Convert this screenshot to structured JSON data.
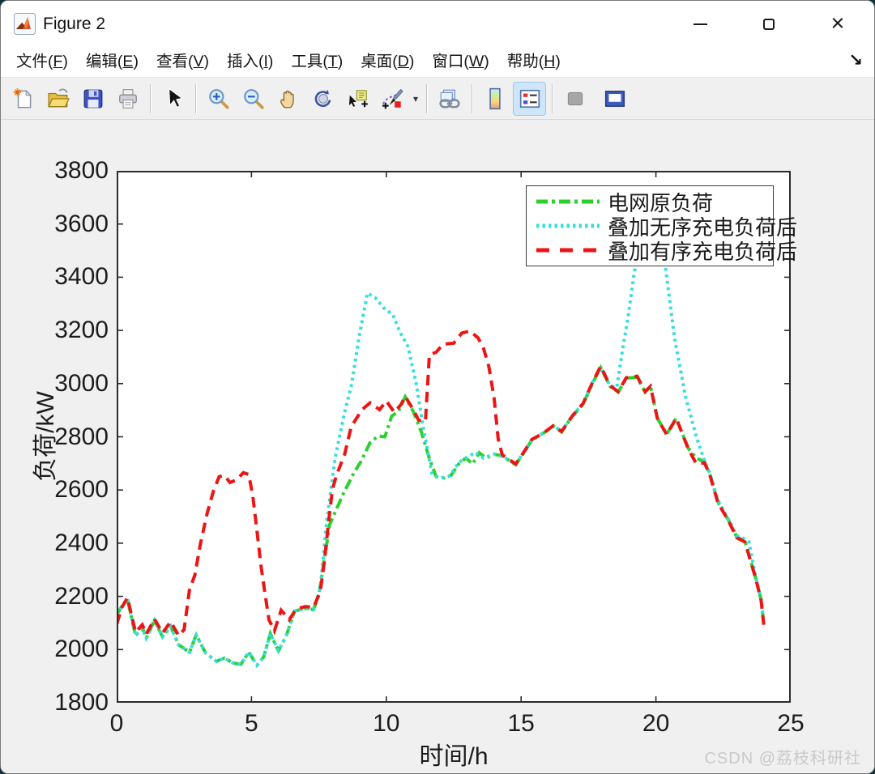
{
  "window": {
    "title": "Figure 2"
  },
  "menu": {
    "items": [
      {
        "pre": "文件(",
        "key": "F",
        "post": ")"
      },
      {
        "pre": "编辑(",
        "key": "E",
        "post": ")"
      },
      {
        "pre": "查看(",
        "key": "V",
        "post": ")"
      },
      {
        "pre": "插入(",
        "key": "I",
        "post": ")"
      },
      {
        "pre": "工具(",
        "key": "T",
        "post": ")"
      },
      {
        "pre": "桌面(",
        "key": "D",
        "post": ")"
      },
      {
        "pre": "窗口(",
        "key": "W",
        "post": ")"
      },
      {
        "pre": "帮助(",
        "key": "H",
        "post": ")"
      }
    ],
    "dock_arrow_glyph": "↘"
  },
  "toolbar": {
    "buttons": [
      "new-figure",
      "open-file",
      "save-figure",
      "print-figure",
      "edit-plot",
      "zoom-in",
      "zoom-out",
      "pan",
      "rotate-3d",
      "data-cursor",
      "brush-data",
      "link-plot",
      "insert-colorbar",
      "insert-legend",
      "hide-plot-tools",
      "show-plot-tools"
    ],
    "active_button": "insert-legend"
  },
  "chart_data": {
    "type": "line",
    "xlabel": "时间/h",
    "ylabel": "负荷/kW",
    "xlim": [
      0,
      25
    ],
    "ylim": [
      1800,
      3800
    ],
    "x_ticks": [
      0,
      5,
      10,
      15,
      20,
      25
    ],
    "y_ticks": [
      1800,
      2000,
      2200,
      2400,
      2600,
      2800,
      3000,
      3200,
      3400,
      3600,
      3800
    ],
    "grid": false,
    "legend_position": "upper-right-inside",
    "series": [
      {
        "name": "电网原负荷",
        "color": "#2bd12b",
        "style": "dash-dot",
        "points": [
          [
            0,
            2130
          ],
          [
            0.2,
            2165
          ],
          [
            0.4,
            2190
          ],
          [
            0.7,
            2052
          ],
          [
            0.95,
            2083
          ],
          [
            1.1,
            2043
          ],
          [
            1.4,
            2110
          ],
          [
            1.7,
            2048
          ],
          [
            2.0,
            2088
          ],
          [
            2.3,
            2018
          ],
          [
            2.7,
            1990
          ],
          [
            2.95,
            2055
          ],
          [
            3.3,
            1987
          ],
          [
            3.7,
            1956
          ],
          [
            4.0,
            1968
          ],
          [
            4.3,
            1950
          ],
          [
            4.6,
            1944
          ],
          [
            4.9,
            1990
          ],
          [
            5.2,
            1941
          ],
          [
            5.45,
            1972
          ],
          [
            5.7,
            2060
          ],
          [
            6.0,
            1995
          ],
          [
            6.3,
            2055
          ],
          [
            6.6,
            2145
          ],
          [
            7.0,
            2155
          ],
          [
            7.3,
            2150
          ],
          [
            7.5,
            2205
          ],
          [
            7.9,
            2470
          ],
          [
            8.4,
            2585
          ],
          [
            8.8,
            2665
          ],
          [
            9.05,
            2705
          ],
          [
            9.4,
            2778
          ],
          [
            9.7,
            2803
          ],
          [
            9.95,
            2800
          ],
          [
            10.2,
            2878
          ],
          [
            10.45,
            2895
          ],
          [
            10.7,
            2950
          ],
          [
            11.0,
            2895
          ],
          [
            11.3,
            2818
          ],
          [
            11.6,
            2718
          ],
          [
            11.85,
            2650
          ],
          [
            12.15,
            2645
          ],
          [
            12.4,
            2655
          ],
          [
            12.7,
            2700
          ],
          [
            12.95,
            2720
          ],
          [
            13.2,
            2698
          ],
          [
            13.45,
            2740
          ],
          [
            13.7,
            2720
          ],
          [
            14.0,
            2735
          ],
          [
            14.3,
            2728
          ],
          [
            14.8,
            2695
          ],
          [
            15.1,
            2740
          ],
          [
            15.4,
            2788
          ],
          [
            15.8,
            2812
          ],
          [
            16.2,
            2840
          ],
          [
            16.5,
            2818
          ],
          [
            16.9,
            2878
          ],
          [
            17.3,
            2922
          ],
          [
            17.65,
            3002
          ],
          [
            17.95,
            3060
          ],
          [
            18.3,
            2990
          ],
          [
            18.6,
            2968
          ],
          [
            18.9,
            3020
          ],
          [
            19.3,
            3025
          ],
          [
            19.6,
            2968
          ],
          [
            19.8,
            2990
          ],
          [
            20.05,
            2870
          ],
          [
            20.4,
            2810
          ],
          [
            20.75,
            2870
          ],
          [
            21.2,
            2757
          ],
          [
            21.5,
            2720
          ],
          [
            21.8,
            2706
          ],
          [
            22.0,
            2658
          ],
          [
            22.3,
            2555
          ],
          [
            22.7,
            2484
          ],
          [
            23.0,
            2423
          ],
          [
            23.3,
            2408
          ],
          [
            23.7,
            2270
          ],
          [
            23.9,
            2188
          ],
          [
            24.0,
            2096
          ]
        ]
      },
      {
        "name": "叠加无序充电负荷后",
        "color": "#35dede",
        "style": "dotted",
        "points": [
          [
            0,
            2130
          ],
          [
            0.2,
            2165
          ],
          [
            0.4,
            2190
          ],
          [
            0.7,
            2052
          ],
          [
            0.95,
            2083
          ],
          [
            1.1,
            2043
          ],
          [
            1.4,
            2110
          ],
          [
            1.7,
            2048
          ],
          [
            2.0,
            2088
          ],
          [
            2.3,
            2018
          ],
          [
            2.7,
            1990
          ],
          [
            2.95,
            2055
          ],
          [
            3.3,
            1987
          ],
          [
            3.7,
            1956
          ],
          [
            4.0,
            1968
          ],
          [
            4.3,
            1950
          ],
          [
            4.6,
            1944
          ],
          [
            4.9,
            1990
          ],
          [
            5.2,
            1941
          ],
          [
            5.45,
            1972
          ],
          [
            5.7,
            2060
          ],
          [
            6.0,
            1995
          ],
          [
            6.3,
            2055
          ],
          [
            6.6,
            2145
          ],
          [
            7.0,
            2155
          ],
          [
            7.3,
            2150
          ],
          [
            7.55,
            2230
          ],
          [
            7.8,
            2490
          ],
          [
            8.1,
            2720
          ],
          [
            8.45,
            2890
          ],
          [
            8.7,
            2990
          ],
          [
            9.0,
            3180
          ],
          [
            9.3,
            3340
          ],
          [
            9.6,
            3322
          ],
          [
            9.9,
            3285
          ],
          [
            10.25,
            3258
          ],
          [
            10.5,
            3195
          ],
          [
            10.8,
            3140
          ],
          [
            11.1,
            3005
          ],
          [
            11.4,
            2818
          ],
          [
            11.7,
            2658
          ],
          [
            12.0,
            2645
          ],
          [
            12.35,
            2652
          ],
          [
            12.7,
            2705
          ],
          [
            13.0,
            2722
          ],
          [
            13.3,
            2742
          ],
          [
            13.6,
            2720
          ],
          [
            14.0,
            2735
          ],
          [
            14.3,
            2728
          ],
          [
            14.8,
            2696
          ],
          [
            15.4,
            2790
          ],
          [
            15.8,
            2812
          ],
          [
            16.2,
            2842
          ],
          [
            16.5,
            2820
          ],
          [
            16.9,
            2880
          ],
          [
            17.3,
            2925
          ],
          [
            17.65,
            3005
          ],
          [
            17.95,
            3060
          ],
          [
            18.3,
            2992
          ],
          [
            18.55,
            2985
          ],
          [
            18.75,
            3120
          ],
          [
            18.95,
            3240
          ],
          [
            19.2,
            3420
          ],
          [
            19.5,
            3570
          ],
          [
            19.8,
            3650
          ],
          [
            20.05,
            3615
          ],
          [
            20.35,
            3440
          ],
          [
            20.7,
            3165
          ],
          [
            21.1,
            2950
          ],
          [
            21.5,
            2800
          ],
          [
            21.8,
            2710
          ],
          [
            22.0,
            2662
          ],
          [
            22.3,
            2560
          ],
          [
            22.7,
            2488
          ],
          [
            23.0,
            2428
          ],
          [
            23.25,
            2418
          ],
          [
            23.45,
            2405
          ],
          [
            23.7,
            2272
          ],
          [
            23.9,
            2190
          ],
          [
            24.0,
            2100
          ]
        ]
      },
      {
        "name": "叠加有序充电负荷后",
        "color": "#ee1414",
        "style": "dashed",
        "points": [
          [
            0,
            2095
          ],
          [
            0.2,
            2160
          ],
          [
            0.4,
            2195
          ],
          [
            0.7,
            2065
          ],
          [
            0.95,
            2093
          ],
          [
            1.1,
            2058
          ],
          [
            1.4,
            2115
          ],
          [
            1.7,
            2062
          ],
          [
            2.0,
            2105
          ],
          [
            2.3,
            2052
          ],
          [
            2.5,
            2075
          ],
          [
            2.7,
            2225
          ],
          [
            2.9,
            2280
          ],
          [
            3.1,
            2395
          ],
          [
            3.35,
            2510
          ],
          [
            3.6,
            2600
          ],
          [
            3.8,
            2650
          ],
          [
            4.0,
            2655
          ],
          [
            4.2,
            2628
          ],
          [
            4.45,
            2638
          ],
          [
            4.7,
            2665
          ],
          [
            4.9,
            2658
          ],
          [
            5.05,
            2575
          ],
          [
            5.2,
            2448
          ],
          [
            5.35,
            2318
          ],
          [
            5.5,
            2212
          ],
          [
            5.65,
            2112
          ],
          [
            5.85,
            2070
          ],
          [
            6.1,
            2148
          ],
          [
            6.4,
            2112
          ],
          [
            6.65,
            2152
          ],
          [
            7.0,
            2162
          ],
          [
            7.3,
            2158
          ],
          [
            7.55,
            2218
          ],
          [
            7.7,
            2330
          ],
          [
            7.85,
            2470
          ],
          [
            8.0,
            2600
          ],
          [
            8.15,
            2655
          ],
          [
            8.45,
            2732
          ],
          [
            8.7,
            2838
          ],
          [
            9.1,
            2902
          ],
          [
            9.4,
            2928
          ],
          [
            9.75,
            2902
          ],
          [
            10.0,
            2935
          ],
          [
            10.3,
            2892
          ],
          [
            10.55,
            2922
          ],
          [
            10.7,
            2952
          ],
          [
            11.0,
            2902
          ],
          [
            11.2,
            2862
          ],
          [
            11.45,
            2858
          ],
          [
            11.6,
            3108
          ],
          [
            11.85,
            3118
          ],
          [
            12.1,
            3148
          ],
          [
            12.5,
            3152
          ],
          [
            12.8,
            3190
          ],
          [
            13.1,
            3198
          ],
          [
            13.4,
            3172
          ],
          [
            13.6,
            3135
          ],
          [
            13.8,
            3065
          ],
          [
            14.0,
            2945
          ],
          [
            14.15,
            2792
          ],
          [
            14.3,
            2732
          ],
          [
            14.8,
            2698
          ],
          [
            15.1,
            2742
          ],
          [
            15.4,
            2790
          ],
          [
            15.8,
            2812
          ],
          [
            16.2,
            2842
          ],
          [
            16.5,
            2820
          ],
          [
            16.9,
            2878
          ],
          [
            17.3,
            2925
          ],
          [
            17.65,
            3005
          ],
          [
            17.95,
            3065
          ],
          [
            18.3,
            2992
          ],
          [
            18.6,
            2970
          ],
          [
            18.9,
            3022
          ],
          [
            19.3,
            3028
          ],
          [
            19.6,
            2970
          ],
          [
            19.8,
            2990
          ],
          [
            20.05,
            2870
          ],
          [
            20.4,
            2808
          ],
          [
            20.75,
            2870
          ],
          [
            21.2,
            2755
          ],
          [
            21.5,
            2698
          ],
          [
            21.8,
            2702
          ],
          [
            22.0,
            2656
          ],
          [
            22.3,
            2552
          ],
          [
            22.7,
            2482
          ],
          [
            23.0,
            2420
          ],
          [
            23.3,
            2405
          ],
          [
            23.7,
            2268
          ],
          [
            23.9,
            2185
          ],
          [
            24.0,
            2093
          ]
        ]
      }
    ]
  },
  "watermark": "CSDN @荔枝科研社"
}
